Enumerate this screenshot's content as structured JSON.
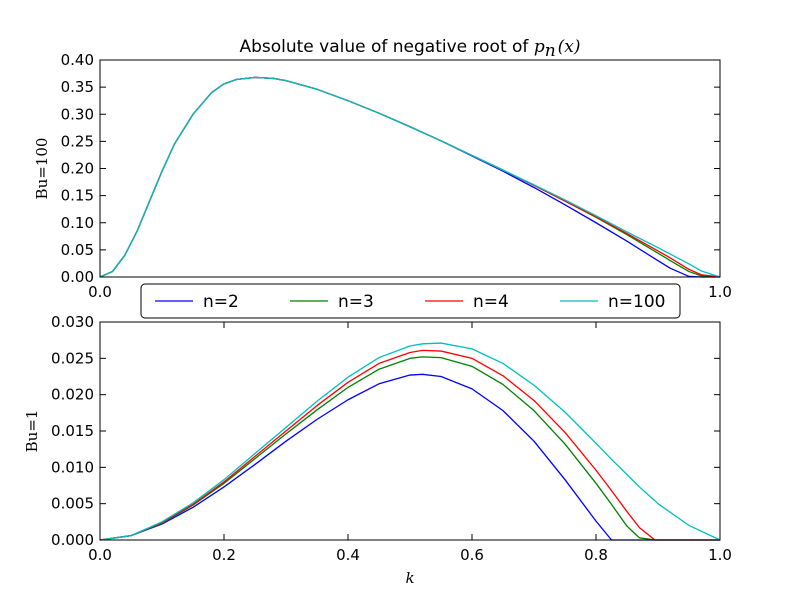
{
  "chart_data": [
    {
      "type": "line",
      "title_text": "Absolute value of negative root of ",
      "title_math": "p",
      "title_math_sub": "n",
      "title_math_arg": "(x)",
      "xlabel": "",
      "ylabel": "Bu=100",
      "xlim": [
        0.0,
        1.0
      ],
      "ylim": [
        0.0,
        0.4
      ],
      "xticks": [
        "0.0",
        "1.0"
      ],
      "xtick_values": [
        0.0,
        1.0
      ],
      "yticks": [
        "0.00",
        "0.05",
        "0.10",
        "0.15",
        "0.20",
        "0.25",
        "0.30",
        "0.35",
        "0.40"
      ],
      "ytick_values": [
        0.0,
        0.05,
        0.1,
        0.15,
        0.2,
        0.25,
        0.3,
        0.35,
        0.4
      ],
      "x": [
        0.0,
        0.02,
        0.04,
        0.06,
        0.08,
        0.1,
        0.12,
        0.15,
        0.18,
        0.2,
        0.22,
        0.25,
        0.28,
        0.3,
        0.35,
        0.4,
        0.45,
        0.5,
        0.55,
        0.6,
        0.65,
        0.7,
        0.75,
        0.8,
        0.85,
        0.9,
        0.92,
        0.95,
        0.97,
        1.0
      ],
      "series": [
        {
          "name": "n=2",
          "color": "#0000ff",
          "values": [
            0.0,
            0.01,
            0.04,
            0.085,
            0.14,
            0.195,
            0.245,
            0.3,
            0.34,
            0.356,
            0.364,
            0.368,
            0.366,
            0.362,
            0.346,
            0.325,
            0.302,
            0.277,
            0.251,
            0.223,
            0.195,
            0.165,
            0.133,
            0.1,
            0.066,
            0.03,
            0.016,
            0.001,
            0.0,
            0.0
          ]
        },
        {
          "name": "n=3",
          "color": "#008000",
          "values": [
            0.0,
            0.01,
            0.04,
            0.085,
            0.14,
            0.195,
            0.245,
            0.3,
            0.34,
            0.356,
            0.364,
            0.368,
            0.366,
            0.362,
            0.346,
            0.325,
            0.302,
            0.277,
            0.251,
            0.224,
            0.197,
            0.169,
            0.14,
            0.11,
            0.078,
            0.044,
            0.03,
            0.01,
            0.002,
            0.0
          ]
        },
        {
          "name": "n=4",
          "color": "#ff0000",
          "values": [
            0.0,
            0.01,
            0.04,
            0.085,
            0.14,
            0.195,
            0.245,
            0.3,
            0.34,
            0.356,
            0.364,
            0.368,
            0.366,
            0.362,
            0.346,
            0.325,
            0.302,
            0.277,
            0.251,
            0.224,
            0.197,
            0.169,
            0.14,
            0.111,
            0.08,
            0.048,
            0.035,
            0.014,
            0.004,
            0.0
          ]
        },
        {
          "name": "n=100",
          "color": "#00bfbf",
          "values": [
            0.0,
            0.01,
            0.04,
            0.085,
            0.14,
            0.195,
            0.245,
            0.3,
            0.34,
            0.356,
            0.364,
            0.368,
            0.366,
            0.362,
            0.346,
            0.325,
            0.302,
            0.277,
            0.251,
            0.224,
            0.197,
            0.17,
            0.142,
            0.113,
            0.083,
            0.054,
            0.042,
            0.024,
            0.011,
            0.0
          ]
        }
      ]
    },
    {
      "type": "line",
      "xlabel": "k",
      "ylabel": "Bu=1",
      "xlim": [
        0.0,
        1.0
      ],
      "ylim": [
        0.0,
        0.03
      ],
      "xticks": [
        "0.0",
        "0.2",
        "0.4",
        "0.6",
        "0.8",
        "1.0"
      ],
      "xtick_values": [
        0.0,
        0.2,
        0.4,
        0.6,
        0.8,
        1.0
      ],
      "yticks": [
        "0.000",
        "0.005",
        "0.010",
        "0.015",
        "0.020",
        "0.025",
        "0.030"
      ],
      "ytick_values": [
        0.0,
        0.005,
        0.01,
        0.015,
        0.02,
        0.025,
        0.03
      ],
      "x": [
        0.0,
        0.05,
        0.1,
        0.15,
        0.2,
        0.25,
        0.3,
        0.35,
        0.4,
        0.45,
        0.5,
        0.52,
        0.55,
        0.6,
        0.65,
        0.7,
        0.75,
        0.8,
        0.825,
        0.85,
        0.87,
        0.895,
        0.9,
        0.95,
        1.0
      ],
      "series": [
        {
          "name": "n=2",
          "color": "#0000ff",
          "values": [
            0.0,
            0.0006,
            0.0022,
            0.0045,
            0.0073,
            0.0104,
            0.0136,
            0.0166,
            0.0193,
            0.0215,
            0.0227,
            0.0228,
            0.0225,
            0.0208,
            0.0178,
            0.0136,
            0.0083,
            0.0026,
            0.0,
            0.0,
            0.0,
            0.0,
            0.0,
            0.0,
            0.0
          ]
        },
        {
          "name": "n=3",
          "color": "#008000",
          "values": [
            0.0,
            0.0006,
            0.0023,
            0.0048,
            0.0078,
            0.0112,
            0.0146,
            0.0179,
            0.021,
            0.0235,
            0.025,
            0.0252,
            0.0251,
            0.0239,
            0.0214,
            0.0178,
            0.0132,
            0.0078,
            0.0049,
            0.0019,
            0.0003,
            0.0,
            0.0,
            0.0,
            0.0
          ]
        },
        {
          "name": "n=4",
          "color": "#ff0000",
          "values": [
            0.0,
            0.0006,
            0.0024,
            0.0049,
            0.008,
            0.0115,
            0.015,
            0.0185,
            0.0217,
            0.0243,
            0.0258,
            0.0261,
            0.026,
            0.025,
            0.0226,
            0.0192,
            0.0148,
            0.0096,
            0.0068,
            0.0039,
            0.0017,
            0.0,
            0.0,
            0.0,
            0.0
          ]
        },
        {
          "name": "n=100",
          "color": "#00bfbf",
          "values": [
            0.0,
            0.0006,
            0.0025,
            0.0051,
            0.0083,
            0.0119,
            0.0155,
            0.0191,
            0.0224,
            0.0251,
            0.0267,
            0.027,
            0.0271,
            0.0263,
            0.0243,
            0.0213,
            0.0176,
            0.0133,
            0.0111,
            0.009,
            0.0073,
            0.0054,
            0.005,
            0.002,
            0.0
          ]
        }
      ]
    }
  ],
  "legend": {
    "placement": "between-plots",
    "entries": [
      {
        "label": "n=2",
        "color": "#0000ff"
      },
      {
        "label": "n=3",
        "color": "#008000"
      },
      {
        "label": "n=4",
        "color": "#ff0000"
      },
      {
        "label": "n=100",
        "color": "#00bfbf"
      }
    ]
  }
}
